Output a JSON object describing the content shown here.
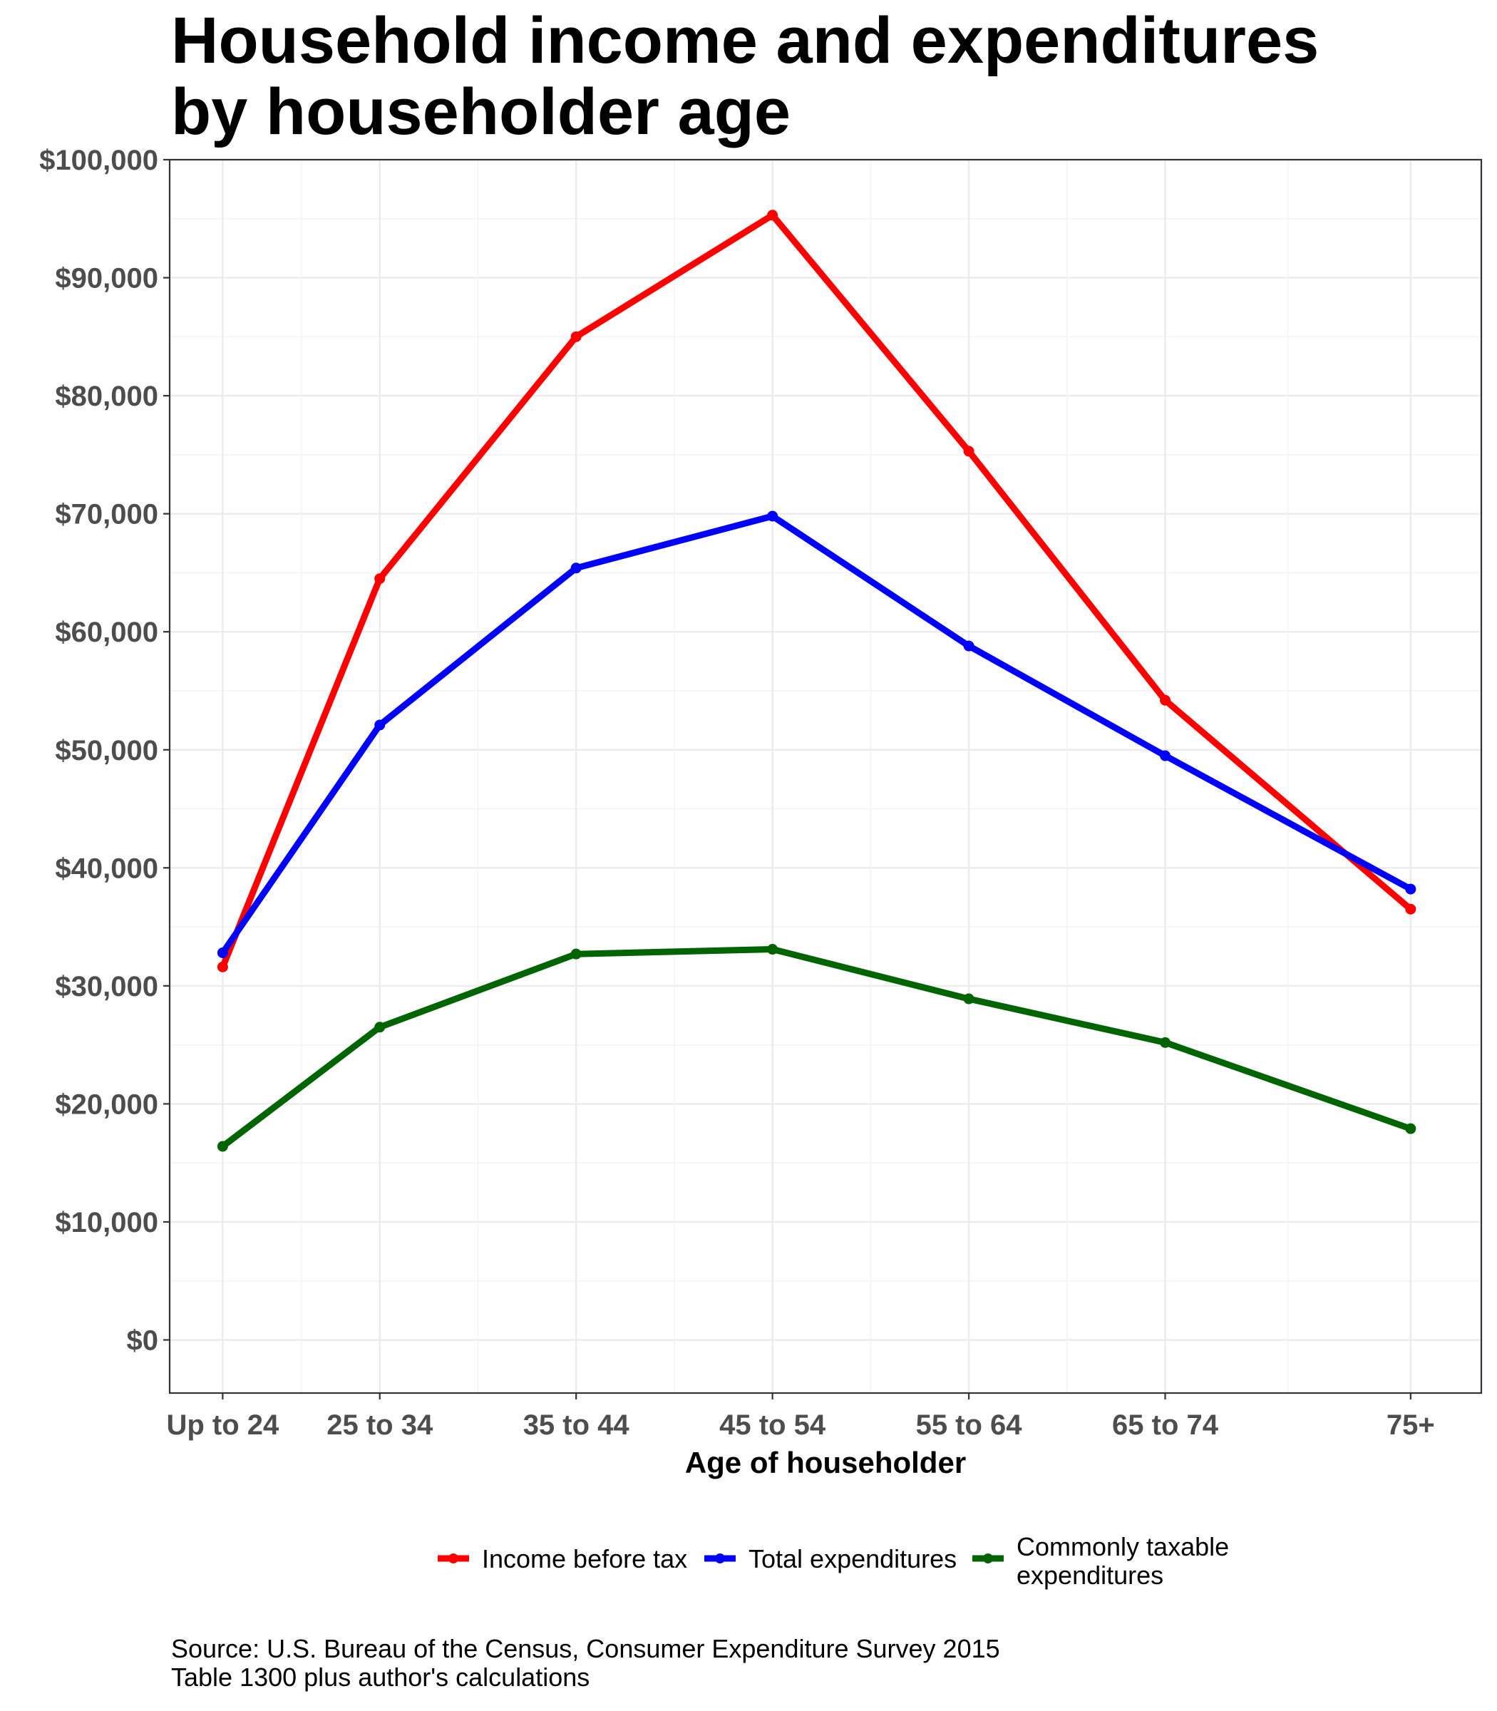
{
  "chart_data": {
    "type": "line",
    "title_lines": [
      "Household income and expenditures",
      "by householder age"
    ],
    "xlabel": "Age of householder",
    "ylabel": "",
    "categories": [
      "Up to 24",
      "25 to 34",
      "35 to 44",
      "45 to 54",
      "55 to 64",
      "65 to 74",
      "75+"
    ],
    "category_positions": [
      21.5,
      29.5,
      39.5,
      49.5,
      59.5,
      69.5,
      82
    ],
    "xlim": [
      18.8,
      85.6
    ],
    "ylim": [
      -4500,
      100000
    ],
    "yticks": [
      0,
      10000,
      20000,
      30000,
      40000,
      50000,
      60000,
      70000,
      80000,
      90000,
      100000
    ],
    "ytick_labels": [
      "$0",
      "$10,000",
      "$20,000",
      "$30,000",
      "$40,000",
      "$50,000",
      "$60,000",
      "$70,000",
      "$80,000",
      "$90,000",
      "$100,000"
    ],
    "grid": true,
    "legend_position": "bottom",
    "series": [
      {
        "name": "Income before tax",
        "color": "#ff0000",
        "values": [
          31600,
          64500,
          85000,
          95300,
          75300,
          54200,
          36500
        ]
      },
      {
        "name": "Total expenditures",
        "color": "#0000ff",
        "values": [
          32800,
          52100,
          65400,
          69800,
          58800,
          49500,
          38200
        ]
      },
      {
        "name": "Commonly taxable\nexpenditures",
        "color": "#006400",
        "values": [
          16400,
          26500,
          32700,
          33100,
          28900,
          25200,
          17900
        ]
      }
    ]
  },
  "caption_lines": [
    "Source: U.S. Bureau of the Census, Consumer Expenditure Survey 2015",
    "Table 1300 plus author's calculations"
  ]
}
